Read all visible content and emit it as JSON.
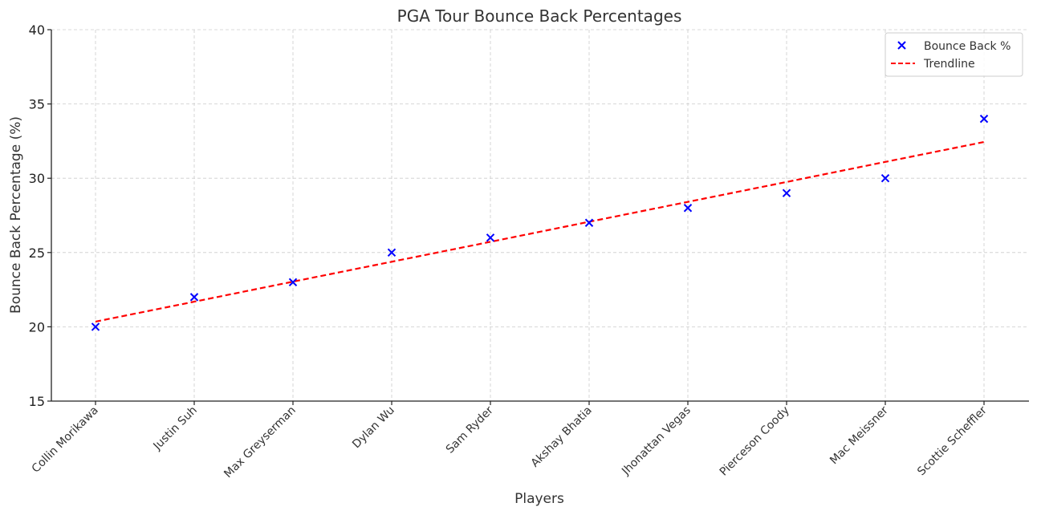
{
  "chart_data": {
    "type": "scatter",
    "title": "PGA Tour Bounce Back Percentages",
    "xlabel": "Players",
    "ylabel": "Bounce Back Percentage (%)",
    "categories": [
      "Collin Morikawa",
      "Justin Suh",
      "Max Greyserman",
      "Dylan Wu",
      "Sam Ryder",
      "Akshay Bhatia",
      "Jhonattan Vegas",
      "Pierceson Coody",
      "Mac Meissner",
      "Scottie Scheffler"
    ],
    "ylim": [
      15,
      40
    ],
    "yticks": [
      15,
      20,
      25,
      30,
      35,
      40
    ],
    "grid": true,
    "legend_position": "top-right",
    "series": [
      {
        "name": "Bounce Back %",
        "kind": "scatter",
        "marker": "x",
        "color": "#0000ff",
        "values": [
          20,
          22,
          23,
          25,
          26,
          27,
          28,
          29,
          30,
          34
        ]
      },
      {
        "name": "Trendline",
        "kind": "line",
        "style": "dashed",
        "color": "#ff0000",
        "values": [
          20.35,
          21.69,
          23.04,
          24.38,
          25.72,
          27.07,
          28.41,
          29.75,
          31.1,
          32.44
        ]
      }
    ]
  }
}
